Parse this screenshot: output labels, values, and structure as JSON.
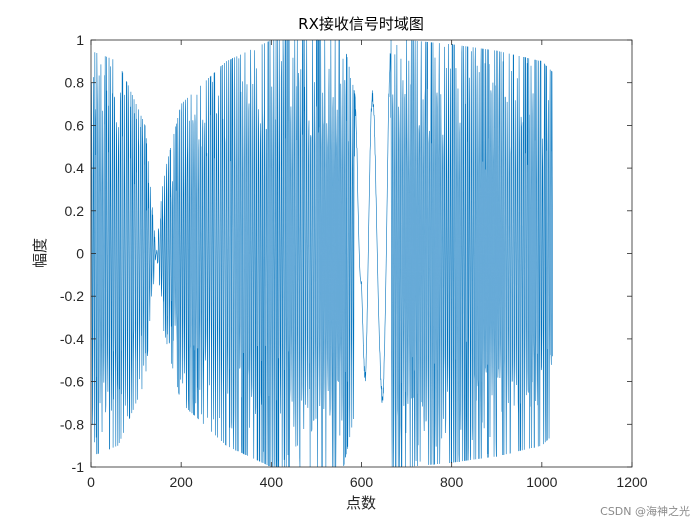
{
  "chart_data": {
    "type": "line",
    "title": "RX接收信号时域图",
    "xlabel": "点数",
    "ylabel": "幅度",
    "xlim": [
      0,
      1200
    ],
    "ylim": [
      -1,
      1
    ],
    "xticks": [
      "0",
      "200",
      "400",
      "600",
      "800",
      "1000",
      "1200"
    ],
    "yticks": [
      "1",
      "0.8",
      "0.6",
      "0.4",
      "0.2",
      "0",
      "-0.2",
      "-0.4",
      "-0.6",
      "-0.8",
      "-1"
    ],
    "grid": false,
    "line_color": "#0072BD",
    "series": [
      {
        "name": "",
        "x_range": [
          1,
          1024
        ],
        "envelope_x": [
          0,
          60,
          120,
          145,
          160,
          200,
          300,
          400,
          500,
          560,
          590,
          600,
          610,
          620,
          640,
          660,
          700,
          800,
          900,
          1000,
          1024
        ],
        "envelope_y": [
          0.95,
          0.9,
          0.6,
          0.0,
          0.35,
          0.7,
          0.9,
          1.0,
          1.0,
          1.0,
          0.7,
          0.2,
          0.8,
          0.82,
          0.6,
          1.0,
          1.0,
          0.98,
          0.95,
          0.9,
          0.85
        ]
      }
    ]
  },
  "watermark": "CSDN @海神之光"
}
